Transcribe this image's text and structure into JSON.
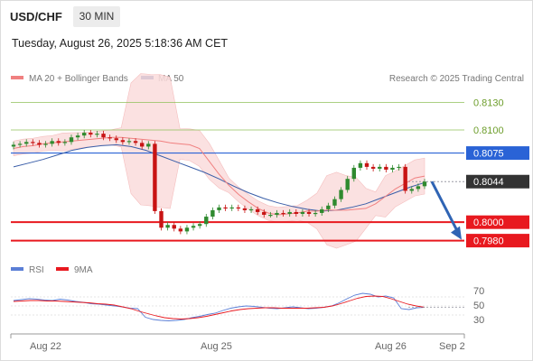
{
  "header": {
    "pair": "USD/CHF",
    "timeframe": "30 MIN",
    "datetime": "Tuesday, August 26, 2025 5:18:36 AM CET"
  },
  "legend": {
    "ma20_label": "MA 20 + Bollinger Bands",
    "ma50_label": "MA 50",
    "credit": "Research © 2025 Trading Central"
  },
  "colors": {
    "ma20": "#f08080",
    "ma50": "#3a5ea8",
    "bb_fill": "#fbdcdc",
    "green_level": "#8fc05a",
    "red_level": "#e8191f",
    "blue_level": "#2a63d6",
    "current": "#333333",
    "up_candle": "#2f8a2f",
    "down_candle": "#c81414",
    "rsi": "#5b7fd6",
    "rsi_ma": "#e8191f",
    "arrow": "#2f64b4"
  },
  "levels": [
    {
      "value": 0.813,
      "label": "0.8130",
      "kind": "green"
    },
    {
      "value": 0.81,
      "label": "0.8100",
      "kind": "green"
    },
    {
      "value": 0.8075,
      "label": "0.8075",
      "kind": "blue"
    },
    {
      "value": 0.8044,
      "label": "0.8044",
      "kind": "current"
    },
    {
      "value": 0.8,
      "label": "0.8000",
      "kind": "red"
    },
    {
      "value": 0.798,
      "label": "0.7980",
      "kind": "red"
    }
  ],
  "rsi_panel": {
    "rsi_label": "RSI",
    "ma_label": "9MA",
    "ticks": [
      "70",
      "50",
      "30"
    ]
  },
  "x_ticks": [
    "Aug 22",
    "Aug 25",
    "Aug 26",
    "Sep 2"
  ],
  "chart_data": {
    "type": "line",
    "title": "USD/CHF 30 MIN",
    "ylim": [
      0.7962,
      0.8148
    ],
    "ohlc_close": [
      0.8084,
      0.8085,
      0.8087,
      0.8086,
      0.8084,
      0.8085,
      0.8088,
      0.8086,
      0.8087,
      0.8092,
      0.8094,
      0.8097,
      0.8095,
      0.8096,
      0.8092,
      0.8091,
      0.8089,
      0.8087,
      0.8088,
      0.8086,
      0.8082,
      0.8085,
      0.8012,
      0.7994,
      0.7997,
      0.7993,
      0.799,
      0.7994,
      0.7996,
      0.7998,
      0.8006,
      0.8013,
      0.8016,
      0.8015,
      0.8016,
      0.8015,
      0.8013,
      0.8014,
      0.8011,
      0.8008,
      0.8008,
      0.801,
      0.8009,
      0.8011,
      0.8009,
      0.8011,
      0.8009,
      0.801,
      0.8014,
      0.8018,
      0.8025,
      0.8035,
      0.8047,
      0.8059,
      0.8064,
      0.806,
      0.8058,
      0.806,
      0.8057,
      0.8059,
      0.806,
      0.8034,
      0.8036,
      0.8039,
      0.8044
    ],
    "ma20": [
      0.808,
      0.8082,
      0.8083,
      0.8085,
      0.8086,
      0.8087,
      0.8088,
      0.8089,
      0.809,
      0.8091,
      0.8092,
      0.8092,
      0.8091,
      0.809,
      0.8089,
      0.8088,
      0.8086,
      0.8085,
      0.8084,
      0.808,
      0.8066,
      0.8052,
      0.804,
      0.803,
      0.8022,
      0.8015,
      0.801,
      0.8008,
      0.8009,
      0.801,
      0.8012,
      0.8012,
      0.8013,
      0.8013,
      0.8013,
      0.8014,
      0.8015,
      0.802,
      0.8028,
      0.8036,
      0.8042,
      0.8048,
      0.805
    ],
    "ma50": [
      0.806,
      0.8064,
      0.8068,
      0.8073,
      0.8078,
      0.8081,
      0.8083,
      0.8084,
      0.8082,
      0.8078,
      0.8072,
      0.8066,
      0.806,
      0.8054,
      0.8047,
      0.8039,
      0.8032,
      0.8026,
      0.8021,
      0.8017,
      0.8014,
      0.8012,
      0.8013,
      0.8016,
      0.802,
      0.8026,
      0.8032,
      0.8038,
      0.8043
    ],
    "rsi": [
      62,
      64,
      66,
      65,
      63,
      62,
      65,
      63,
      60,
      58,
      55,
      54,
      52,
      50,
      48,
      45,
      44,
      25,
      20,
      18,
      17,
      18,
      20,
      24,
      27,
      31,
      34,
      40,
      45,
      48,
      50,
      49,
      47,
      45,
      44,
      46,
      48,
      46,
      44,
      45,
      47,
      50,
      57,
      66,
      74,
      78,
      76,
      70,
      72,
      68,
      44,
      42,
      46,
      47
    ],
    "rsi_ma": [
      60,
      61,
      62,
      62,
      61,
      61,
      60,
      59,
      58,
      57,
      55,
      54,
      52,
      48,
      44,
      38,
      33,
      28,
      24,
      22,
      21,
      22,
      24,
      27,
      31,
      35,
      39,
      42,
      44,
      45,
      46,
      46,
      45,
      45,
      45,
      45,
      46,
      47,
      50,
      55,
      61,
      67,
      71,
      72,
      71,
      66,
      60,
      54,
      50,
      47
    ]
  }
}
